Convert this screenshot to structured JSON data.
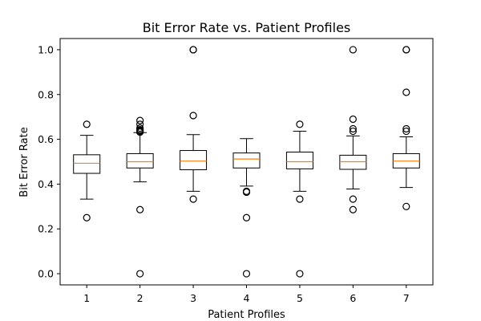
{
  "chart_data": {
    "type": "box",
    "title": "Bit Error Rate vs. Patient Profiles",
    "xlabel": "Patient Profiles",
    "ylabel": "Bit Error Rate",
    "ylim": [
      -0.05,
      1.05
    ],
    "yticks": [
      "0.0",
      "0.2",
      "0.4",
      "0.6",
      "0.8",
      "1.0"
    ],
    "grid": false,
    "categories": [
      "1",
      "2",
      "3",
      "4",
      "5",
      "6",
      "7"
    ],
    "boxes": [
      {
        "category": "1",
        "whisker_low": 0.333,
        "q1": 0.448,
        "median": 0.493,
        "q3": 0.531,
        "whisker_high": 0.618,
        "outliers": [
          0.667,
          0.25
        ]
      },
      {
        "category": "2",
        "whisker_low": 0.41,
        "q1": 0.472,
        "median": 0.5,
        "q3": 0.536,
        "whisker_high": 0.63,
        "outliers": [
          0.684,
          0.667,
          0.65,
          0.643,
          0.64,
          0.636,
          0.632,
          0.286,
          0.0
        ]
      },
      {
        "category": "3",
        "whisker_low": 0.368,
        "q1": 0.464,
        "median": 0.503,
        "q3": 0.55,
        "whisker_high": 0.621,
        "outliers": [
          1.0,
          1.0,
          0.706,
          0.333
        ]
      },
      {
        "category": "4",
        "whisker_low": 0.391,
        "q1": 0.472,
        "median": 0.512,
        "q3": 0.539,
        "whisker_high": 0.603,
        "outliers": [
          0.368,
          0.364,
          0.25,
          0.0
        ]
      },
      {
        "category": "5",
        "whisker_low": 0.368,
        "q1": 0.468,
        "median": 0.5,
        "q3": 0.543,
        "whisker_high": 0.636,
        "outliers": [
          0.667,
          0.333,
          0.0
        ]
      },
      {
        "category": "6",
        "whisker_low": 0.378,
        "q1": 0.466,
        "median": 0.5,
        "q3": 0.529,
        "whisker_high": 0.615,
        "outliers": [
          1.0,
          0.69,
          0.647,
          0.636,
          0.333,
          0.286
        ]
      },
      {
        "category": "7",
        "whisker_low": 0.385,
        "q1": 0.472,
        "median": 0.503,
        "q3": 0.536,
        "whisker_high": 0.611,
        "outliers": [
          1.0,
          1.0,
          0.81,
          0.647,
          0.636,
          0.3
        ]
      }
    ],
    "colors": {
      "box": "#000000",
      "median": "#ff7f0e",
      "outlier": "#000000"
    }
  }
}
